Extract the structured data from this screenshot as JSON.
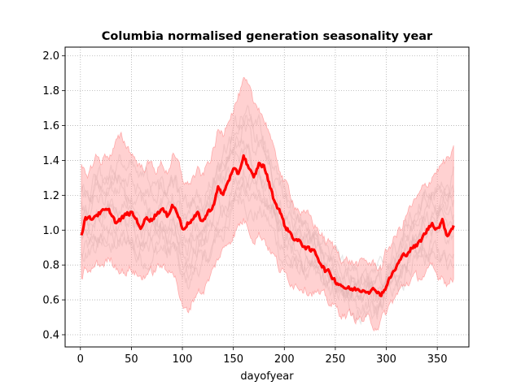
{
  "chart_data": {
    "type": "line",
    "title": "Columbia normalised generation seasonality year",
    "xlabel": "dayofyear",
    "ylabel": "",
    "xlim": [
      -15,
      381
    ],
    "ylim": [
      0.33,
      2.05
    ],
    "xticks": [
      0,
      50,
      100,
      150,
      200,
      250,
      300,
      350
    ],
    "yticks": [
      0.4,
      0.6,
      0.8,
      1.0,
      1.2,
      1.4,
      1.6,
      1.8,
      2.0
    ],
    "xtick_labels": [
      "0",
      "50",
      "100",
      "150",
      "200",
      "250",
      "300",
      "350"
    ],
    "ytick_labels": [
      "0.4",
      "0.6",
      "0.8",
      "1.0",
      "1.2",
      "1.4",
      "1.6",
      "1.8",
      "2.0"
    ],
    "grid": true,
    "colors": {
      "mean": "#ff0000",
      "band": "#ff9999",
      "years": "#c8c8c8",
      "grid": "#b0b0b0"
    },
    "series": [
      {
        "role": "mean",
        "x": [
          1,
          5,
          10,
          15,
          20,
          25,
          30,
          35,
          40,
          45,
          50,
          55,
          60,
          65,
          70,
          75,
          80,
          85,
          90,
          95,
          100,
          105,
          110,
          115,
          120,
          125,
          130,
          135,
          140,
          145,
          150,
          155,
          160,
          165,
          170,
          175,
          180,
          185,
          190,
          195,
          200,
          205,
          210,
          215,
          220,
          225,
          230,
          235,
          240,
          245,
          250,
          255,
          260,
          265,
          270,
          275,
          280,
          285,
          290,
          295,
          300,
          305,
          310,
          315,
          320,
          325,
          330,
          335,
          340,
          345,
          350,
          355,
          360,
          366
        ],
        "y": [
          0.98,
          1.08,
          1.06,
          1.09,
          1.1,
          1.11,
          1.1,
          1.04,
          1.06,
          1.09,
          1.1,
          1.06,
          1.01,
          1.08,
          1.06,
          1.1,
          1.12,
          1.08,
          1.15,
          1.1,
          1.01,
          1.04,
          1.06,
          1.09,
          1.05,
          1.1,
          1.14,
          1.24,
          1.2,
          1.29,
          1.34,
          1.32,
          1.43,
          1.36,
          1.29,
          1.38,
          1.37,
          1.27,
          1.17,
          1.12,
          1.03,
          0.99,
          0.95,
          0.93,
          0.91,
          0.88,
          0.88,
          0.82,
          0.77,
          0.75,
          0.71,
          0.69,
          0.67,
          0.66,
          0.66,
          0.66,
          0.66,
          0.65,
          0.66,
          0.63,
          0.68,
          0.74,
          0.79,
          0.84,
          0.87,
          0.9,
          0.91,
          0.95,
          1.0,
          1.04,
          1.01,
          1.05,
          0.97,
          1.03
        ]
      },
      {
        "role": "band-upper",
        "x": [
          1,
          5,
          10,
          15,
          20,
          25,
          30,
          35,
          40,
          45,
          50,
          55,
          60,
          65,
          70,
          75,
          80,
          85,
          90,
          95,
          100,
          105,
          110,
          115,
          120,
          125,
          130,
          135,
          140,
          145,
          150,
          155,
          160,
          165,
          170,
          175,
          180,
          185,
          190,
          195,
          200,
          205,
          210,
          215,
          220,
          225,
          230,
          235,
          240,
          245,
          250,
          255,
          260,
          265,
          270,
          275,
          280,
          285,
          290,
          295,
          300,
          305,
          310,
          315,
          320,
          325,
          330,
          335,
          340,
          345,
          350,
          355,
          360,
          366
        ],
        "y": [
          1.37,
          1.3,
          1.35,
          1.42,
          1.4,
          1.43,
          1.44,
          1.5,
          1.52,
          1.49,
          1.45,
          1.4,
          1.36,
          1.38,
          1.37,
          1.35,
          1.38,
          1.34,
          1.42,
          1.38,
          1.3,
          1.26,
          1.3,
          1.33,
          1.3,
          1.38,
          1.45,
          1.56,
          1.55,
          1.66,
          1.71,
          1.77,
          1.84,
          1.8,
          1.71,
          1.72,
          1.64,
          1.58,
          1.43,
          1.37,
          1.27,
          1.22,
          1.16,
          1.12,
          1.08,
          1.07,
          1.03,
          0.99,
          0.94,
          0.92,
          0.89,
          0.86,
          0.83,
          0.82,
          0.81,
          0.8,
          0.82,
          0.81,
          0.8,
          0.79,
          0.87,
          0.93,
          0.97,
          1.02,
          1.09,
          1.14,
          1.17,
          1.22,
          1.26,
          1.32,
          1.35,
          1.38,
          1.4,
          1.44
        ]
      },
      {
        "role": "band-lower",
        "x": [
          1,
          5,
          10,
          15,
          20,
          25,
          30,
          35,
          40,
          45,
          50,
          55,
          60,
          65,
          70,
          75,
          80,
          85,
          90,
          95,
          100,
          105,
          110,
          115,
          120,
          125,
          130,
          135,
          140,
          145,
          150,
          155,
          160,
          165,
          170,
          175,
          180,
          185,
          190,
          195,
          200,
          205,
          210,
          215,
          220,
          225,
          230,
          235,
          240,
          245,
          250,
          255,
          260,
          265,
          270,
          275,
          280,
          285,
          290,
          295,
          300,
          305,
          310,
          315,
          320,
          325,
          330,
          335,
          340,
          345,
          350,
          355,
          360,
          366
        ],
        "y": [
          0.73,
          0.78,
          0.75,
          0.8,
          0.8,
          0.82,
          0.83,
          0.8,
          0.78,
          0.76,
          0.78,
          0.75,
          0.72,
          0.76,
          0.75,
          0.78,
          0.8,
          0.74,
          0.8,
          0.7,
          0.55,
          0.52,
          0.6,
          0.66,
          0.65,
          0.7,
          0.76,
          0.84,
          0.88,
          0.94,
          0.98,
          1.02,
          1.06,
          1.02,
          0.96,
          0.98,
          0.96,
          0.9,
          0.85,
          0.78,
          0.74,
          0.72,
          0.7,
          0.69,
          0.68,
          0.66,
          0.65,
          0.62,
          0.6,
          0.58,
          0.55,
          0.53,
          0.51,
          0.51,
          0.5,
          0.49,
          0.48,
          0.47,
          0.46,
          0.48,
          0.52,
          0.58,
          0.62,
          0.66,
          0.7,
          0.72,
          0.72,
          0.74,
          0.75,
          0.77,
          0.73,
          0.75,
          0.7,
          0.72
        ]
      }
    ]
  }
}
